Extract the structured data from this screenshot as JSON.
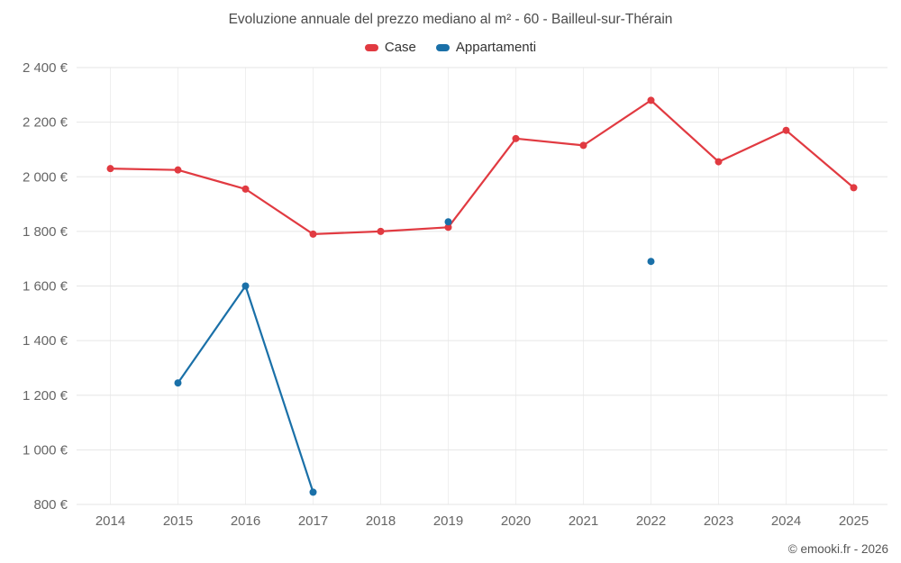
{
  "title": "Evoluzione annuale del prezzo mediano al m² - 60 - Bailleul-sur-Thérain",
  "footer": {
    "credit": "© emooki.fr - 2026"
  },
  "chart_data": {
    "type": "line",
    "title": "Evoluzione annuale del prezzo mediano al m² - 60 - Bailleul-sur-Thérain",
    "categories": [
      "2014",
      "2015",
      "2016",
      "2017",
      "2018",
      "2019",
      "2020",
      "2021",
      "2022",
      "2023",
      "2024",
      "2025"
    ],
    "series": [
      {
        "name": "Case",
        "color": "#e13a41",
        "values": [
          2030,
          2025,
          1955,
          1790,
          1800,
          1815,
          2140,
          2115,
          2280,
          2055,
          2170,
          1960
        ]
      },
      {
        "name": "Appartamenti",
        "color": "#1a70a8",
        "values": [
          null,
          1245,
          1600,
          845,
          null,
          1835,
          null,
          null,
          1690,
          null,
          null,
          null
        ]
      }
    ],
    "xlabel": "",
    "ylabel": "",
    "ylim": [
      800,
      2400
    ],
    "ytick_step": 200,
    "ytick_suffix": " €",
    "grid": true,
    "legend_position": "top",
    "colors": {
      "grid_h": "#e6e6e6",
      "grid_v": "#efefef",
      "axis_label": "#666666"
    }
  }
}
